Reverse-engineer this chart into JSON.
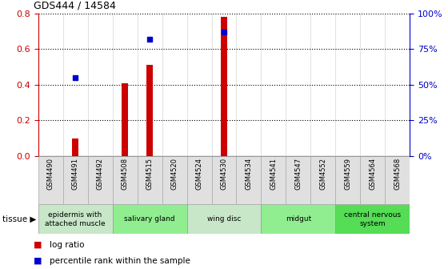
{
  "title": "GDS444 / 14584",
  "samples": [
    "GSM4490",
    "GSM4491",
    "GSM4492",
    "GSM4508",
    "GSM4515",
    "GSM4520",
    "GSM4524",
    "GSM4530",
    "GSM4534",
    "GSM4541",
    "GSM4547",
    "GSM4552",
    "GSM4559",
    "GSM4564",
    "GSM4568"
  ],
  "log_ratio": [
    0.0,
    0.1,
    0.0,
    0.41,
    0.51,
    0.0,
    0.0,
    0.78,
    0.0,
    0.0,
    0.0,
    0.0,
    0.0,
    0.0,
    0.0
  ],
  "percentile_raw": [
    null,
    55,
    null,
    null,
    82,
    null,
    null,
    87,
    null,
    null,
    null,
    null,
    null,
    null,
    null
  ],
  "ylim_left": [
    0,
    0.8
  ],
  "ylim_right": [
    0,
    100
  ],
  "yticks_left": [
    0,
    0.2,
    0.4,
    0.6,
    0.8
  ],
  "yticks_right": [
    0,
    25,
    50,
    75,
    100
  ],
  "tissue_groups": [
    {
      "label": "epidermis with\nattached muscle",
      "start": 0,
      "end": 3,
      "color": "#c8e6c8"
    },
    {
      "label": "salivary gland",
      "start": 3,
      "end": 6,
      "color": "#90ee90"
    },
    {
      "label": "wing disc",
      "start": 6,
      "end": 9,
      "color": "#c8e6c8"
    },
    {
      "label": "midgut",
      "start": 9,
      "end": 12,
      "color": "#90ee90"
    },
    {
      "label": "central nervous\nsystem",
      "start": 12,
      "end": 15,
      "color": "#55dd55"
    }
  ],
  "bar_color": "#cc0000",
  "dot_color": "#0000cc",
  "left_axis_color": "#cc0000",
  "right_axis_color": "#0000cc",
  "sample_box_color": "#e0e0e0",
  "sample_box_edge": "#aaaaaa"
}
